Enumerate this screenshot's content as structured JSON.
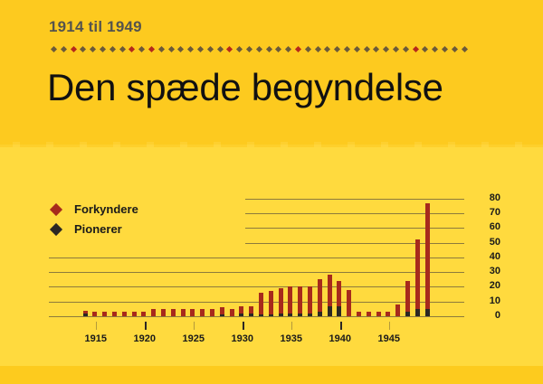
{
  "header": {
    "subtitle": "1914 til 1949",
    "title": "Den spæde begyndelse",
    "dots": {
      "count": 43,
      "red_indices": [
        2,
        8,
        10,
        18,
        25,
        37
      ]
    }
  },
  "colors": {
    "background_top": "#FDCA1F",
    "background_main": "#FFDA3E",
    "forkyndere": "#A72A1C",
    "pionerer": "#2B2724",
    "dot": "#6B5A3A",
    "dot_accent": "#B5281C"
  },
  "legend": {
    "items": [
      {
        "label": "Forkyndere",
        "color": "#A72A1C",
        "icon": "diamond-icon"
      },
      {
        "label": "Pionerer",
        "color": "#2B2724",
        "icon": "diamond-icon"
      }
    ]
  },
  "chart_data": {
    "type": "bar",
    "stacked": true,
    "title": "Den spæde begyndelse",
    "subtitle": "1914 til 1949",
    "xlabel": "",
    "ylabel": "",
    "ylim": [
      0,
      80
    ],
    "yticks": [
      0,
      10,
      20,
      30,
      40,
      50,
      60,
      70,
      80
    ],
    "yaxis_position": "right",
    "grid": true,
    "legend_position": "top-left",
    "xtick_labels": [
      "1915",
      "1920",
      "1925",
      "1930",
      "1935",
      "1940",
      "1945"
    ],
    "categories": [
      1914,
      1915,
      1916,
      1917,
      1918,
      1919,
      1920,
      1921,
      1922,
      1923,
      1924,
      1925,
      1926,
      1927,
      1928,
      1929,
      1930,
      1931,
      1932,
      1933,
      1934,
      1935,
      1936,
      1937,
      1938,
      1939,
      1940,
      1941,
      1942,
      1943,
      1944,
      1945,
      1946,
      1947,
      1948,
      1949
    ],
    "series": [
      {
        "name": "Forkyndere",
        "values": [
          4,
          3,
          3,
          3,
          3,
          3,
          3,
          5,
          5,
          5,
          5,
          5,
          5,
          5,
          6,
          5,
          7,
          7,
          16,
          17,
          19,
          20,
          20,
          20,
          25,
          28,
          24,
          18,
          3,
          3,
          3,
          3,
          8,
          24,
          52,
          77
        ]
      },
      {
        "name": "Pionerer",
        "values": [
          2,
          0,
          0,
          0,
          0,
          0,
          0,
          0,
          0,
          0,
          0,
          0,
          0,
          0,
          1,
          0,
          2,
          2,
          1,
          1,
          2,
          2,
          2,
          2,
          3,
          7,
          7,
          0,
          0,
          0,
          0,
          0,
          0,
          3,
          5,
          5
        ]
      }
    ]
  }
}
